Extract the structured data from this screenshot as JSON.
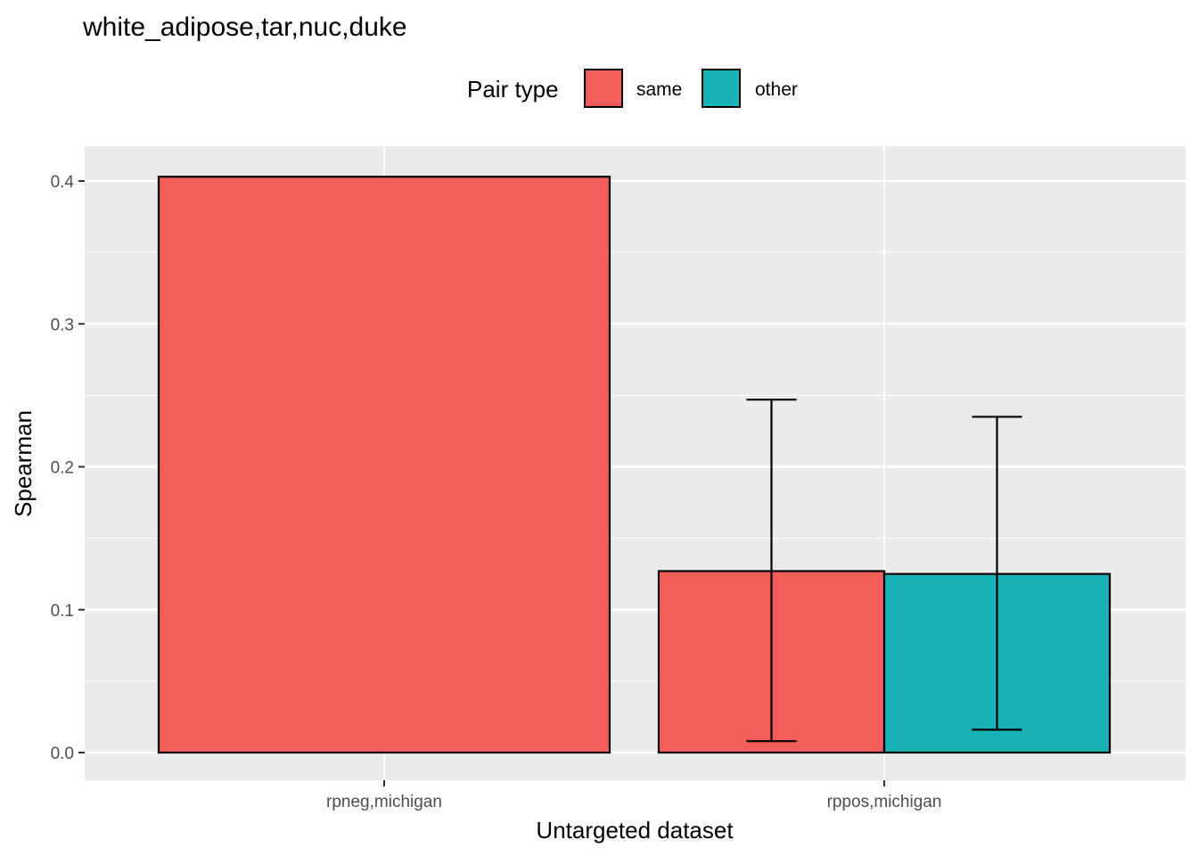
{
  "chart_data": {
    "type": "bar",
    "title": "white_adipose,tar,nuc,duke",
    "xlabel": "Untargeted dataset",
    "ylabel": "Spearman",
    "categories": [
      "rpneg,michigan",
      "rppos,michigan"
    ],
    "ylim": [
      -0.02,
      0.425
    ],
    "yticks": [
      0.0,
      0.1,
      0.2,
      0.3,
      0.4
    ],
    "ytick_labels": [
      "0.0",
      "0.1",
      "0.2",
      "0.3",
      "0.4"
    ],
    "grid": true,
    "legend": {
      "title": "Pair type",
      "placement": "top",
      "entries": [
        {
          "label": "same",
          "color": "#F35E5A"
        },
        {
          "label": "other",
          "color": "#17B3B7"
        }
      ]
    },
    "series": [
      {
        "name": "same",
        "color": "#F35E5A",
        "values": [
          0.403,
          0.127
        ],
        "error_low": [
          null,
          0.008
        ],
        "error_high": [
          null,
          0.247
        ]
      },
      {
        "name": "other",
        "color": "#17B3B7",
        "values": [
          null,
          0.125
        ],
        "error_low": [
          null,
          0.016
        ],
        "error_high": [
          null,
          0.235
        ]
      }
    ]
  }
}
